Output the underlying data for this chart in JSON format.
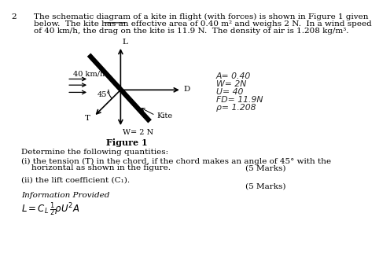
{
  "question_number": "2",
  "title_line1": "The schematic diagram of a kite in flight (with forces) is shown in Figure 1 given",
  "title_line2": "below.  The kite has an effective area of 0.40 m² and weighs 2 N.  In a wind speed",
  "title_line3": "of 40 km/h, the drag on the kite is 11.9 N.  The density of air is 1.208 kg/m³.",
  "underline_text": "0.40 m",
  "figure_label": "Figure 1",
  "wind_label": "40 km/h",
  "L_label": "L",
  "D_label": "D",
  "W_label": "W= 2 N",
  "T_label": "T",
  "kite_label": "Kite",
  "angle_label": "45°",
  "hw_line1": "A= 0.40",
  "hw_line2": "W= 2N",
  "hw_line3": "U= 40",
  "hw_line4": "FD= 11.9N",
  "hw_line5": "ρ= 1.208",
  "q0": "Determine the following quantities:",
  "q1a": "(i) the tension (T) in the chord, if the chord makes an angle of 45° with the",
  "q1b": "    horizontal as shown in the figure.",
  "marks1": "(5 Marks)",
  "q2": "(ii) the lift coefficient (C₁).",
  "marks2": "(5 Marks)",
  "info": "Information Provided",
  "formula": "L = C₁ ½pU²A",
  "bg_color": "#ffffff",
  "text_color": "#000000",
  "gray_color": "#555555"
}
